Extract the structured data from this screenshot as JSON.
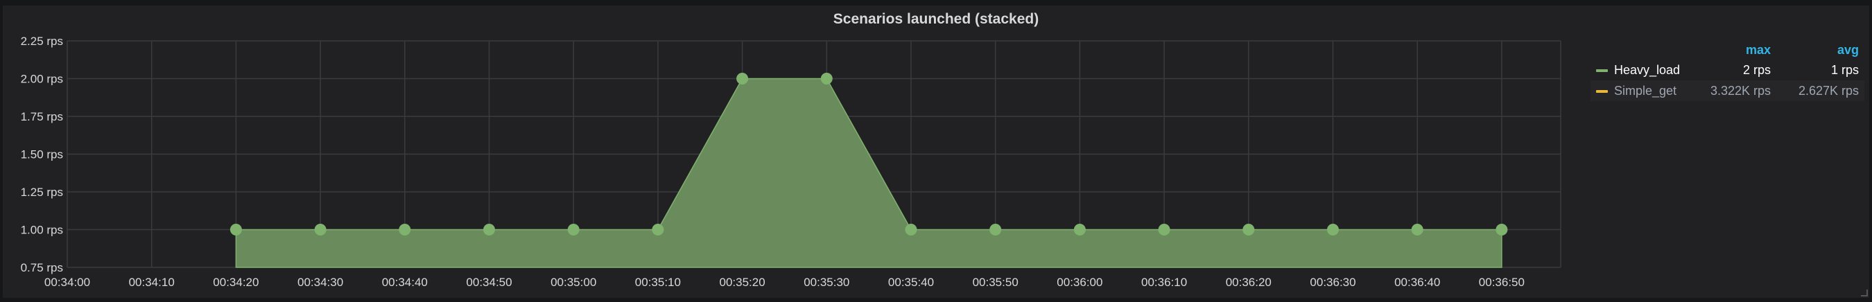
{
  "panel": {
    "title": "Scenarios launched (stacked)"
  },
  "legend": {
    "headers": {
      "max": "max",
      "avg": "avg"
    },
    "items": [
      {
        "name": "Heavy_load",
        "max": "2 rps",
        "avg": "1 rps",
        "color": "#7eb26d",
        "active": true
      },
      {
        "name": "Simple_get",
        "max": "3.322K rps",
        "avg": "2.627K rps",
        "color": "#eab839",
        "active": false
      }
    ]
  },
  "colors": {
    "background": "#161719",
    "panel": "#212124",
    "grid": "#3a3b3e",
    "axis_text": "#d8d9da",
    "series_fill": "#6a8c5c",
    "series_point": "#7eb26d"
  },
  "chart_data": {
    "type": "area",
    "title": "Scenarios launched (stacked)",
    "xlabel": "",
    "ylabel": "",
    "ylim": [
      0.75,
      2.25
    ],
    "grid": true,
    "legend_position": "right",
    "y_ticks": [
      "0.75 rps",
      "1.00 rps",
      "1.25 rps",
      "1.50 rps",
      "1.75 rps",
      "2.00 rps",
      "2.25 rps"
    ],
    "y_tick_values": [
      0.75,
      1.0,
      1.25,
      1.5,
      1.75,
      2.0,
      2.25
    ],
    "x_ticks": [
      "00:34:00",
      "00:34:10",
      "00:34:20",
      "00:34:30",
      "00:34:40",
      "00:34:50",
      "00:35:00",
      "00:35:10",
      "00:35:20",
      "00:35:30",
      "00:35:40",
      "00:35:50",
      "00:36:00",
      "00:36:10",
      "00:36:20",
      "00:36:30",
      "00:36:40",
      "00:36:50"
    ],
    "series": [
      {
        "name": "Heavy_load",
        "x": [
          "00:34:20",
          "00:34:30",
          "00:34:40",
          "00:34:50",
          "00:35:00",
          "00:35:10",
          "00:35:20",
          "00:35:30",
          "00:35:40",
          "00:35:50",
          "00:36:00",
          "00:36:10",
          "00:36:20",
          "00:36:30",
          "00:36:40",
          "00:36:50"
        ],
        "values": [
          1,
          1,
          1,
          1,
          1,
          1,
          2,
          2,
          1,
          1,
          1,
          1,
          1,
          1,
          1,
          1
        ]
      }
    ]
  }
}
